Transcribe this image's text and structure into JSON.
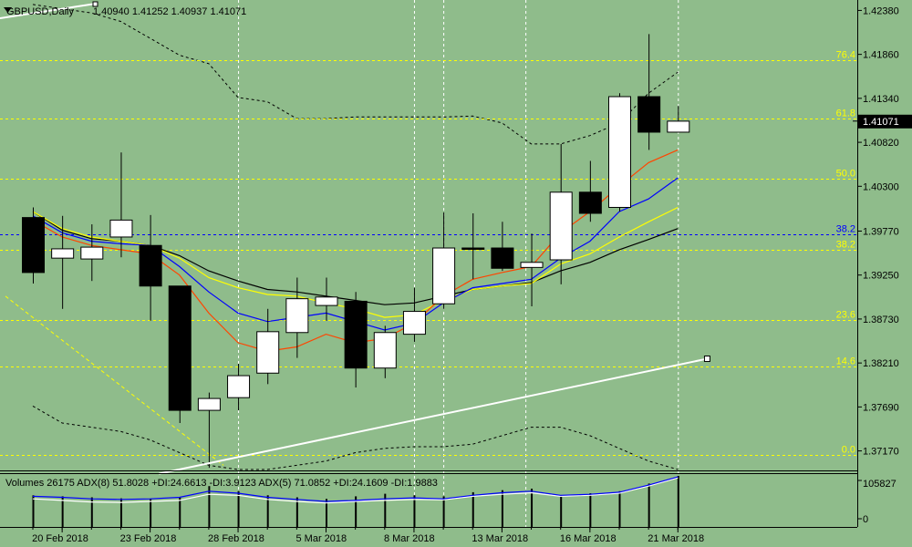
{
  "header": {
    "symbol": "GBPUSD,Daily",
    "ohlc": "1.40940 1.41252 1.40937 1.41071"
  },
  "indicator_label": "Volumes 26175  ADX(8) 51.8028 +DI:24.6613 -DI:3.9123  ADX(5) 71.0852 +DI:24.1609 -DI:1.9883",
  "current_price_label": "1.41071",
  "volume_scale": {
    "max_label": "105827",
    "min_label": "0"
  },
  "colors": {
    "background": "#8fbc8b",
    "bull_body": "#ffffff",
    "bear_body": "#000000",
    "fib": "#ffff00",
    "blue_level": "#0000ff",
    "trendline": "#ffffff",
    "ma_red": "#ff4500",
    "ma_blue": "#0000ff",
    "ma_yellow": "#ffff00",
    "ma_black": "#000000"
  },
  "chart_data": {
    "type": "candlestick",
    "ylim": [
      1.3695,
      1.4246
    ],
    "price_ticks": [
      "1.42380",
      "1.41860",
      "1.41340",
      "1.40820",
      "1.40300",
      "1.39770",
      "1.39250",
      "1.38730",
      "1.38210",
      "1.37690",
      "1.37170"
    ],
    "x_labels": [
      "20 Feb 2018",
      "23 Feb 2018",
      "28 Feb 2018",
      "5 Mar 2018",
      "8 Mar 2018",
      "13 Mar 2018",
      "16 Mar 2018",
      "21 Mar 2018"
    ],
    "x_label_candle_index": [
      1,
      4,
      7,
      10,
      13,
      16,
      19,
      22
    ],
    "candles": [
      {
        "o": 1.3993,
        "h": 1.4005,
        "l": 1.3915,
        "c": 1.3928
      },
      {
        "o": 1.3945,
        "h": 1.3995,
        "l": 1.3885,
        "c": 1.3956
      },
      {
        "o": 1.3944,
        "h": 1.3985,
        "l": 1.3918,
        "c": 1.3958
      },
      {
        "o": 1.397,
        "h": 1.407,
        "l": 1.3946,
        "c": 1.399
      },
      {
        "o": 1.396,
        "h": 1.3996,
        "l": 1.3871,
        "c": 1.3912
      },
      {
        "o": 1.3912,
        "h": 1.3912,
        "l": 1.375,
        "c": 1.3765
      },
      {
        "o": 1.3765,
        "h": 1.3786,
        "l": 1.3697,
        "c": 1.3779
      },
      {
        "o": 1.378,
        "h": 1.382,
        "l": 1.3765,
        "c": 1.3806
      },
      {
        "o": 1.3809,
        "h": 1.3885,
        "l": 1.3796,
        "c": 1.3858
      },
      {
        "o": 1.3857,
        "h": 1.3922,
        "l": 1.3827,
        "c": 1.3897
      },
      {
        "o": 1.3889,
        "h": 1.3922,
        "l": 1.3871,
        "c": 1.3899
      },
      {
        "o": 1.3894,
        "h": 1.3905,
        "l": 1.3792,
        "c": 1.3815
      },
      {
        "o": 1.3815,
        "h": 1.3865,
        "l": 1.3803,
        "c": 1.3857
      },
      {
        "o": 1.3855,
        "h": 1.391,
        "l": 1.3846,
        "c": 1.3882
      },
      {
        "o": 1.3891,
        "h": 1.3999,
        "l": 1.3885,
        "c": 1.3957
      },
      {
        "o": 1.3957,
        "h": 1.3998,
        "l": 1.392,
        "c": 1.3956
      },
      {
        "o": 1.3957,
        "h": 1.3988,
        "l": 1.393,
        "c": 1.3933
      },
      {
        "o": 1.3934,
        "h": 1.3974,
        "l": 1.3888,
        "c": 1.394
      },
      {
        "o": 1.3943,
        "h": 1.408,
        "l": 1.3914,
        "c": 1.4023
      },
      {
        "o": 1.4023,
        "h": 1.406,
        "l": 1.3988,
        "c": 1.3998
      },
      {
        "o": 1.4005,
        "h": 1.414,
        "l": 1.4,
        "c": 1.4136
      },
      {
        "o": 1.4136,
        "h": 1.421,
        "l": 1.4073,
        "c": 1.4094
      },
      {
        "o": 1.4094,
        "h": 1.4125,
        "l": 1.4094,
        "c": 1.4107
      }
    ],
    "fib_levels": [
      {
        "label": "76.4",
        "price": 1.4179
      },
      {
        "label": "61.8",
        "price": 1.411
      },
      {
        "label": "50.0",
        "price": 1.4039
      },
      {
        "label": "38.2",
        "price": 1.3955
      },
      {
        "label": "23.6",
        "price": 1.3872
      },
      {
        "label": "14.6",
        "price": 1.3817
      },
      {
        "label": "0.0",
        "price": 1.3712
      }
    ],
    "blue_level": {
      "label": "38.2",
      "price": 1.3973
    },
    "ma_red": [
      1.399,
      1.397,
      1.396,
      1.3955,
      1.395,
      1.3925,
      1.388,
      1.3845,
      1.3835,
      1.384,
      1.3855,
      1.3845,
      1.385,
      1.3868,
      1.39,
      1.392,
      1.3928,
      1.3935,
      1.3975,
      1.4,
      1.403,
      1.4058,
      1.4073
    ],
    "ma_blue": [
      1.3995,
      1.3975,
      1.3965,
      1.3962,
      1.396,
      1.3935,
      1.3905,
      1.388,
      1.387,
      1.3875,
      1.388,
      1.387,
      1.386,
      1.3868,
      1.3892,
      1.391,
      1.3915,
      1.392,
      1.3945,
      1.3965,
      1.4,
      1.4015,
      1.404
    ],
    "ma_yellow": [
      1.4,
      1.398,
      1.397,
      1.3965,
      1.396,
      1.3945,
      1.3922,
      1.391,
      1.3902,
      1.39,
      1.3892,
      1.3885,
      1.3875,
      1.3878,
      1.3895,
      1.3908,
      1.3912,
      1.3915,
      1.3938,
      1.395,
      1.397,
      1.3988,
      1.4005
    ],
    "ma_black": [
      1.4,
      1.3978,
      1.3968,
      1.3965,
      1.396,
      1.3948,
      1.393,
      1.3918,
      1.3908,
      1.3905,
      1.39,
      1.3895,
      1.389,
      1.3892,
      1.39,
      1.3908,
      1.3912,
      1.3916,
      1.393,
      1.394,
      1.3955,
      1.3967,
      1.398
    ],
    "upper_band": [
      1.4245,
      1.424,
      1.4235,
      1.4225,
      1.4205,
      1.4185,
      1.4175,
      1.4135,
      1.413,
      1.411,
      1.411,
      1.4112,
      1.4112,
      1.4112,
      1.4112,
      1.4113,
      1.4105,
      1.408,
      1.408,
      1.409,
      1.4105,
      1.414,
      1.4165
    ],
    "lower_band": [
      1.377,
      1.375,
      1.3745,
      1.374,
      1.373,
      1.3715,
      1.37,
      1.3695,
      1.3695,
      1.37,
      1.3705,
      1.3715,
      1.372,
      1.3722,
      1.3722,
      1.3725,
      1.3735,
      1.3745,
      1.3745,
      1.3735,
      1.372,
      1.3705,
      1.3695
    ],
    "trendline": {
      "from": {
        "candle": 4.3,
        "price": 1.369
      },
      "to": {
        "candle": 23.0,
        "price": 1.3826
      }
    },
    "diagonal_dashed": {
      "from": {
        "candle": 0,
        "price": 1.39
      },
      "to": {
        "candle": 6.5,
        "price": 1.37
      }
    },
    "volume": {
      "values": [
        62,
        60,
        58,
        56,
        55,
        58,
        80,
        70,
        62,
        58,
        55,
        60,
        65,
        62,
        60,
        68,
        72,
        75,
        62,
        66,
        70,
        85,
        100
      ],
      "adx_blue": [
        60,
        58,
        55,
        54,
        55,
        58,
        70,
        66,
        58,
        54,
        50,
        52,
        55,
        57,
        55,
        62,
        67,
        70,
        62,
        64,
        68,
        82,
        98
      ],
      "adx_white": [
        55,
        52,
        49,
        48,
        50,
        52,
        64,
        62,
        54,
        50,
        47,
        50,
        52,
        54,
        53,
        60,
        64,
        67,
        60,
        62,
        66,
        80,
        96
      ],
      "max": 105827
    },
    "vertical_dashed_candles": [
      7,
      13,
      14,
      16.8,
      22
    ]
  }
}
